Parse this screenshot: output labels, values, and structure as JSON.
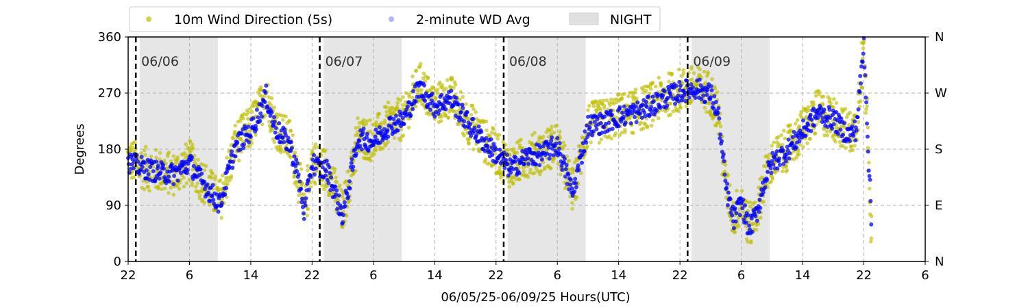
{
  "chart_data": {
    "type": "scatter",
    "xlabel": "06/05/25-06/09/25  Hours(UTC)",
    "ylabel": "Degrees",
    "ylim": [
      0,
      360
    ],
    "xlim_hours_from_0605_2200": [
      0,
      104
    ],
    "yticks": [
      0,
      90,
      180,
      270,
      360
    ],
    "right_ticks": [
      {
        "value": 0,
        "label": "N"
      },
      {
        "value": 90,
        "label": "E"
      },
      {
        "value": 180,
        "label": "S"
      },
      {
        "value": 270,
        "label": "W"
      },
      {
        "value": 360,
        "label": "N"
      }
    ],
    "xticks": [
      {
        "hour": 0,
        "label": "22"
      },
      {
        "hour": 8,
        "label": "6"
      },
      {
        "hour": 16,
        "label": "14"
      },
      {
        "hour": 24,
        "label": "22"
      },
      {
        "hour": 32,
        "label": "6"
      },
      {
        "hour": 40,
        "label": "14"
      },
      {
        "hour": 48,
        "label": "22"
      },
      {
        "hour": 56,
        "label": "6"
      },
      {
        "hour": 64,
        "label": "14"
      },
      {
        "hour": 72,
        "label": "22"
      },
      {
        "hour": 80,
        "label": "6"
      },
      {
        "hour": 88,
        "label": "14"
      },
      {
        "hour": 96,
        "label": "22"
      },
      {
        "hour": 104,
        "label": "6"
      }
    ],
    "grid": true,
    "legend_position": "top-left, above plot",
    "day_markers": [
      {
        "hour": 1,
        "label": "06/06"
      },
      {
        "hour": 25,
        "label": "06/07"
      },
      {
        "hour": 49,
        "label": "06/08"
      },
      {
        "hour": 73,
        "label": "06/09"
      }
    ],
    "night_periods": [
      [
        1.5,
        11.7
      ],
      [
        25.5,
        35.7
      ],
      [
        49.5,
        59.7
      ],
      [
        73.5,
        83.7
      ]
    ],
    "series": [
      {
        "name": "10m Wind Direction (5s)",
        "color": "#bfbf00",
        "x": [
          0,
          2,
          4,
          6,
          8,
          10,
          12,
          14,
          16,
          17,
          18,
          19,
          20,
          21,
          22,
          23,
          24,
          25,
          26,
          28,
          30,
          32,
          34,
          36,
          38,
          40,
          42,
          44,
          46,
          48,
          50,
          52,
          54,
          56,
          58,
          60,
          62,
          64,
          66,
          68,
          70,
          72,
          74,
          76,
          77,
          78,
          79,
          80,
          81,
          82,
          83,
          84,
          86,
          88,
          90,
          92,
          94,
          95,
          96,
          97
        ],
        "y": [
          165,
          150,
          145,
          140,
          160,
          125,
          95,
          190,
          215,
          240,
          270,
          225,
          205,
          195,
          150,
          80,
          165,
          150,
          148,
          75,
          200,
          195,
          220,
          230,
          285,
          250,
          265,
          230,
          200,
          175,
          150,
          170,
          175,
          190,
          110,
          220,
          225,
          235,
          240,
          250,
          265,
          275,
          280,
          270,
          240,
          120,
          70,
          100,
          55,
          80,
          130,
          160,
          180,
          210,
          240,
          230,
          205,
          215,
          350,
          60
        ]
      },
      {
        "name": "2-minute WD Avg",
        "color": "#0000ff",
        "x": [
          0,
          2,
          4,
          6,
          8,
          10,
          12,
          14,
          16,
          17,
          18,
          19,
          20,
          21,
          22,
          23,
          24,
          25,
          26,
          28,
          30,
          32,
          34,
          36,
          38,
          40,
          42,
          44,
          46,
          48,
          50,
          52,
          54,
          56,
          58,
          60,
          62,
          64,
          66,
          68,
          70,
          72,
          74,
          76,
          77,
          78,
          79,
          80,
          81,
          82,
          83,
          84,
          86,
          88,
          90,
          92,
          94,
          95,
          96,
          97
        ],
        "y": [
          160,
          150,
          143,
          140,
          158,
          122,
          92,
          185,
          210,
          235,
          265,
          220,
          200,
          190,
          148,
          78,
          160,
          148,
          146,
          72,
          198,
          192,
          218,
          228,
          280,
          248,
          262,
          228,
          198,
          172,
          148,
          168,
          172,
          188,
          108,
          218,
          222,
          232,
          238,
          248,
          262,
          272,
          278,
          268,
          236,
          118,
          66,
          96,
          52,
          76,
          128,
          158,
          178,
          208,
          238,
          228,
          202,
          212,
          348,
          56
        ]
      },
      {
        "name": "NIGHT",
        "color": "#e0e0e0"
      }
    ]
  }
}
